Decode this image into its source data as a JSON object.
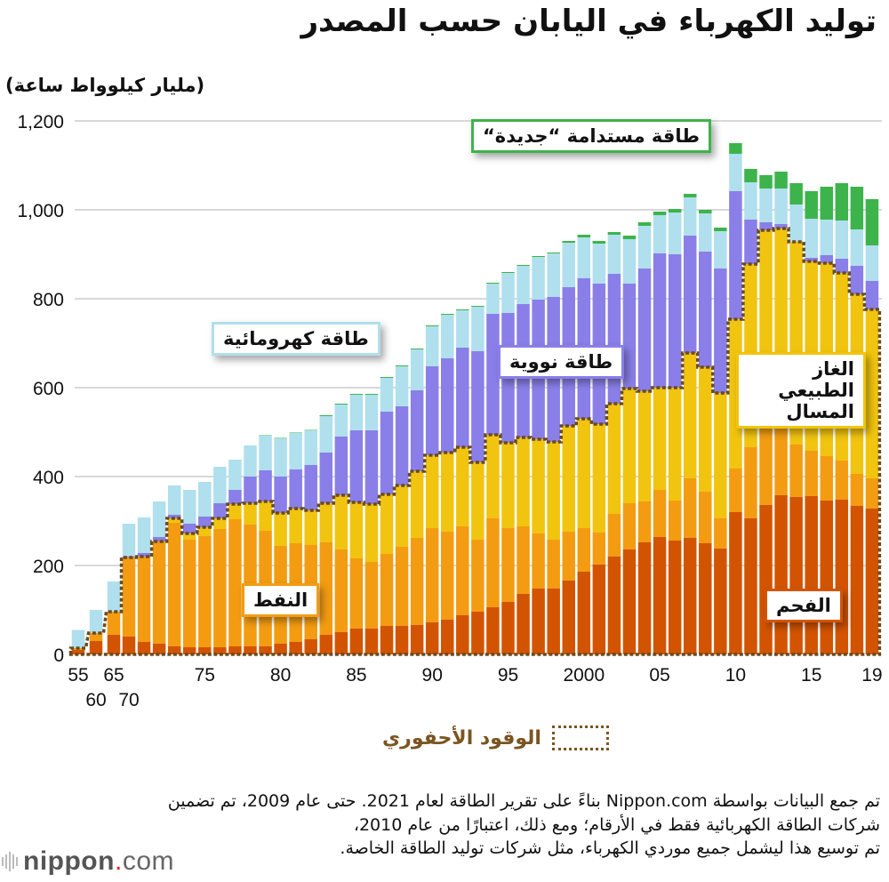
{
  "title": "توليد الكهرباء في اليابان حسب المصدر",
  "unit_label": "(مليار كيلوواط ساعة)",
  "colors": {
    "coal": "#d35400",
    "oil": "#f39c12",
    "lng": "#f1c40f",
    "nuclear": "#8a7fe8",
    "hydro": "#b0dfee",
    "renewables": "#3cb44b",
    "fossil_outline": "#6b4a1e",
    "grid": "#cccccc"
  },
  "labels": {
    "hydro": "طاقة كهرومائية",
    "nuclear": "طاقة نووية",
    "renewables": "طاقة مستدامة “جديدة“",
    "lng": "الغاز الطبيعي المسال",
    "oil": "النفط",
    "coal": "الفحم"
  },
  "legend": {
    "fossil_label": "الوقود الأحفوري"
  },
  "note": {
    "line1": "تم جمع البيانات بواسطة Nippon.com بناءً على تقرير الطاقة لعام 2021. حتى عام 2009، تم تضمين",
    "line2": "شركات الطاقة الكهربائية فقط في الأرقام؛ ومع ذلك، اعتبارًا من عام 2010،",
    "line3": "تم توسيع هذا ليشمل جميع موردي الكهرباء، مثل شركات توليد الطاقة الخاصة."
  },
  "logo": {
    "name": "nippon",
    "dot": ".",
    "suffix": "com"
  },
  "chart_data": {
    "type": "bar",
    "stacked": true,
    "title": "توليد الكهرباء في اليابان حسب المصدر",
    "ylabel": "(مليار كيلوواط ساعة)",
    "xlabel": "",
    "ylim": [
      0,
      1200
    ],
    "yticks": [
      0,
      200,
      400,
      600,
      800,
      1000,
      1200
    ],
    "ytick_labels": [
      "0",
      "200",
      "400",
      "600",
      "800",
      "1,000",
      "1,200"
    ],
    "grid": true,
    "x_tick_labels": [
      {
        "year": 1955,
        "label": "55",
        "row": 1
      },
      {
        "year": 1960,
        "label": "60",
        "row": 2
      },
      {
        "year": 1965,
        "label": "65",
        "row": 1
      },
      {
        "year": 1970,
        "label": "70",
        "row": 2
      },
      {
        "year": 1975,
        "label": "75",
        "row": 1
      },
      {
        "year": 1980,
        "label": "80",
        "row": 1
      },
      {
        "year": 1985,
        "label": "85",
        "row": 1
      },
      {
        "year": 1990,
        "label": "90",
        "row": 1
      },
      {
        "year": 1995,
        "label": "95",
        "row": 1
      },
      {
        "year": 2000,
        "label": "2000",
        "row": 1
      },
      {
        "year": 2005,
        "label": "05",
        "row": 1
      },
      {
        "year": 2010,
        "label": "10",
        "row": 1
      },
      {
        "year": 2015,
        "label": "15",
        "row": 1
      },
      {
        "year": 2019,
        "label": "19",
        "row": 1
      }
    ],
    "categories": [
      1955,
      1960,
      1965,
      1970,
      1971,
      1972,
      1973,
      1974,
      1975,
      1976,
      1977,
      1978,
      1979,
      1980,
      1981,
      1982,
      1983,
      1984,
      1985,
      1986,
      1987,
      1988,
      1989,
      1990,
      1991,
      1992,
      1993,
      1994,
      1995,
      1996,
      1997,
      1998,
      1999,
      2000,
      2001,
      2002,
      2003,
      2004,
      2005,
      2006,
      2007,
      2008,
      2009,
      2010,
      2011,
      2012,
      2013,
      2014,
      2015,
      2016,
      2017,
      2018,
      2019
    ],
    "series": [
      {
        "key": "coal",
        "name": "الفحم",
        "values": [
          10,
          30,
          44,
          40,
          28,
          24,
          18,
          16,
          16,
          16,
          18,
          18,
          18,
          24,
          28,
          34,
          44,
          50,
          58,
          58,
          64,
          64,
          66,
          72,
          78,
          88,
          96,
          106,
          118,
          136,
          148,
          148,
          166,
          186,
          202,
          220,
          236,
          252,
          264,
          256,
          262,
          250,
          238,
          320,
          306,
          336,
          358,
          354,
          356,
          346,
          348,
          334,
          328
        ]
      },
      {
        "key": "oil",
        "name": "النفط",
        "values": [
          4,
          18,
          52,
          178,
          192,
          230,
          278,
          242,
          250,
          266,
          286,
          274,
          260,
          220,
          222,
          212,
          208,
          186,
          158,
          150,
          162,
          178,
          196,
          212,
          198,
          200,
          162,
          200,
          166,
          152,
          124,
          110,
          110,
          98,
          72,
          96,
          104,
          92,
          106,
          90,
          134,
          116,
          68,
          98,
          160,
          188,
          156,
          118,
          102,
          100,
          88,
          72,
          68
        ]
      },
      {
        "key": "lng",
        "name": "الغاز الطبيعي المسال",
        "values": [
          0,
          0,
          0,
          0,
          0,
          0,
          10,
          14,
          20,
          24,
          34,
          48,
          66,
          74,
          78,
          78,
          88,
          122,
          126,
          130,
          134,
          138,
          150,
          164,
          178,
          178,
          174,
          188,
          192,
          200,
          212,
          220,
          238,
          246,
          244,
          248,
          258,
          248,
          230,
          254,
          282,
          280,
          282,
          336,
          412,
          430,
          444,
          456,
          426,
          434,
          422,
          404,
          380
        ]
      },
      {
        "key": "nuclear",
        "name": "طاقة نووية",
        "values": [
          0,
          0,
          0,
          2,
          8,
          10,
          8,
          22,
          24,
          34,
          32,
          60,
          70,
          82,
          88,
          102,
          114,
          132,
          162,
          166,
          186,
          178,
          182,
          200,
          212,
          224,
          250,
          272,
          292,
          300,
          314,
          326,
          312,
          316,
          316,
          292,
          236,
          276,
          302,
          300,
          264,
          260,
          280,
          288,
          100,
          18,
          10,
          0,
          8,
          18,
          32,
          64,
          64
        ]
      },
      {
        "key": "hydro",
        "name": "طاقة كهرومائية",
        "values": [
          41,
          52,
          68,
          74,
          80,
          80,
          66,
          76,
          78,
          82,
          68,
          70,
          78,
          86,
          82,
          78,
          82,
          72,
          80,
          80,
          76,
          90,
          92,
          90,
          98,
          84,
          100,
          68,
          90,
          86,
          96,
          98,
          100,
          92,
          90,
          88,
          100,
          96,
          86,
          94,
          86,
          86,
          84,
          84,
          84,
          76,
          80,
          84,
          88,
          80,
          86,
          82,
          80
        ]
      },
      {
        "key": "renewables",
        "name": "طاقة مستدامة “جديدة“",
        "values": [
          0,
          0,
          0,
          0,
          0,
          0,
          0,
          0,
          0,
          0,
          0,
          0,
          1,
          1,
          1,
          1,
          2,
          2,
          2,
          2,
          2,
          2,
          2,
          2,
          2,
          2,
          2,
          2,
          2,
          2,
          2,
          2,
          4,
          6,
          6,
          6,
          8,
          8,
          8,
          8,
          8,
          8,
          8,
          24,
          30,
          30,
          38,
          48,
          62,
          74,
          84,
          96,
          104
        ]
      }
    ],
    "fossil_total_note": "dotted outline marks coal+oil+lng (fossil fuels)"
  }
}
